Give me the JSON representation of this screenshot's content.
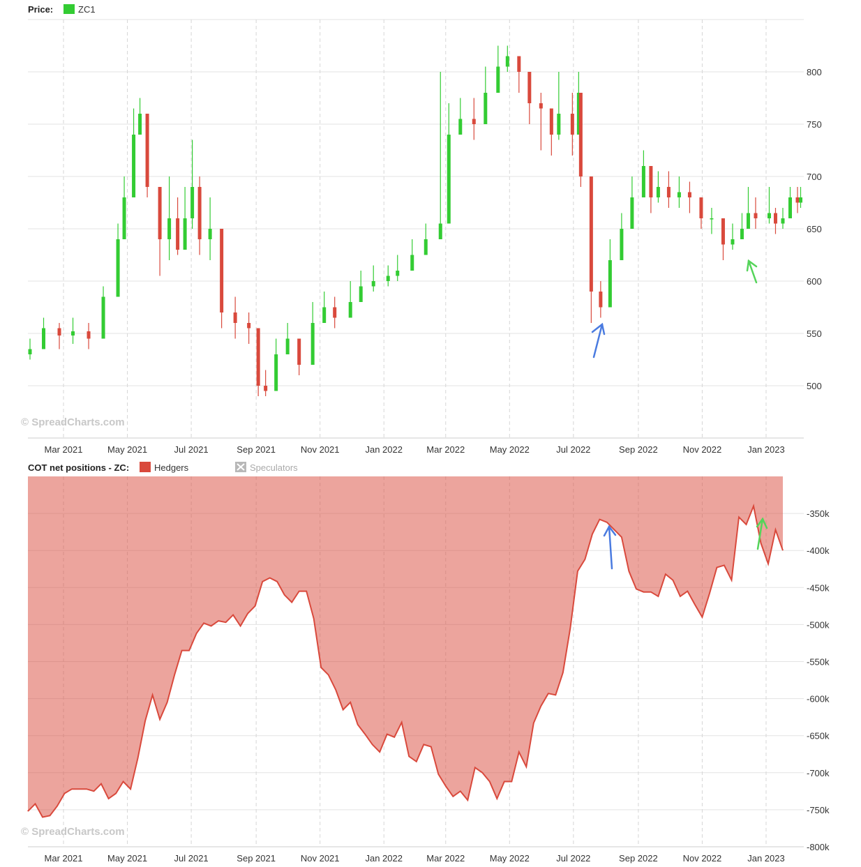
{
  "price_panel": {
    "label": "Price:",
    "legend": [
      {
        "name": "ZC1",
        "color": "#33cc33"
      }
    ],
    "watermark": "© SpreadCharts.com"
  },
  "cot_panel": {
    "label": "COT net positions - ZC:",
    "legend": [
      {
        "name": "Hedgers",
        "color": "#d9493c",
        "active": true
      },
      {
        "name": "Speculators",
        "color": "#aaaaaa",
        "active": false
      }
    ],
    "watermark": "© SpreadCharts.com"
  },
  "chart_data": [
    {
      "type": "candlestick",
      "title": "",
      "series_name": "ZC1",
      "x_ticks": [
        "Mar 2021",
        "May 2021",
        "Jul 2021",
        "Sep 2021",
        "Nov 2021",
        "Jan 2022",
        "Mar 2022",
        "May 2022",
        "Jul 2022",
        "Sep 2022",
        "Nov 2022",
        "Jan 2023"
      ],
      "y_ticks": [
        500,
        550,
        600,
        650,
        700,
        750,
        800
      ],
      "ylim": [
        450,
        850
      ],
      "colors": {
        "up": "#33cc33",
        "down": "#d9493c"
      },
      "grid": true,
      "x": [
        "2021-01-28",
        "2021-02-10",
        "2021-02-25",
        "2021-03-10",
        "2021-03-25",
        "2021-04-08",
        "2021-04-22",
        "2021-04-28",
        "2021-05-07",
        "2021-05-13",
        "2021-05-20",
        "2021-06-01",
        "2021-06-10",
        "2021-06-18",
        "2021-06-25",
        "2021-07-02",
        "2021-07-09",
        "2021-07-19",
        "2021-07-30",
        "2021-08-12",
        "2021-08-25",
        "2021-09-03",
        "2021-09-10",
        "2021-09-20",
        "2021-10-01",
        "2021-10-12",
        "2021-10-25",
        "2021-11-05",
        "2021-11-15",
        "2021-11-30",
        "2021-12-10",
        "2021-12-22",
        "2022-01-05",
        "2022-01-14",
        "2022-01-28",
        "2022-02-10",
        "2022-02-24",
        "2022-03-04",
        "2022-03-15",
        "2022-03-28",
        "2022-04-08",
        "2022-04-20",
        "2022-04-29",
        "2022-05-10",
        "2022-05-20",
        "2022-05-31",
        "2022-06-10",
        "2022-06-17",
        "2022-06-30",
        "2022-07-06",
        "2022-07-08",
        "2022-07-18",
        "2022-07-27",
        "2022-08-05",
        "2022-08-16",
        "2022-08-26",
        "2022-09-06",
        "2022-09-13",
        "2022-09-20",
        "2022-09-30",
        "2022-10-10",
        "2022-10-20",
        "2022-10-31",
        "2022-11-10",
        "2022-11-21",
        "2022-11-30",
        "2022-12-09",
        "2022-12-15",
        "2022-12-22",
        "2023-01-04",
        "2023-01-10",
        "2023-01-17",
        "2023-01-24",
        "2023-01-31",
        "2023-02-03"
      ],
      "close": [
        535,
        555,
        548,
        552,
        545,
        585,
        640,
        680,
        740,
        760,
        690,
        640,
        660,
        630,
        660,
        690,
        640,
        650,
        570,
        560,
        555,
        500,
        495,
        530,
        545,
        520,
        560,
        575,
        565,
        580,
        595,
        600,
        605,
        610,
        625,
        640,
        655,
        740,
        755,
        750,
        780,
        805,
        815,
        800,
        770,
        765,
        740,
        760,
        740,
        780,
        700,
        590,
        575,
        620,
        650,
        680,
        710,
        680,
        690,
        680,
        685,
        680,
        660,
        660,
        635,
        640,
        650,
        665,
        660,
        665,
        655,
        660,
        680,
        675,
        680
      ],
      "high": [
        545,
        565,
        560,
        565,
        560,
        595,
        655,
        700,
        765,
        775,
        760,
        680,
        700,
        680,
        690,
        735,
        700,
        680,
        585,
        585,
        570,
        520,
        515,
        545,
        560,
        545,
        580,
        590,
        585,
        600,
        610,
        615,
        615,
        625,
        640,
        655,
        800,
        770,
        775,
        775,
        805,
        825,
        825,
        815,
        790,
        780,
        760,
        800,
        780,
        800,
        730,
        620,
        600,
        640,
        665,
        700,
        725,
        700,
        705,
        705,
        700,
        695,
        675,
        670,
        650,
        655,
        665,
        690,
        680,
        690,
        670,
        670,
        690,
        690,
        690
      ],
      "low": [
        525,
        540,
        535,
        540,
        535,
        570,
        630,
        660,
        720,
        740,
        680,
        605,
        620,
        625,
        640,
        650,
        625,
        620,
        555,
        545,
        540,
        490,
        490,
        515,
        530,
        510,
        545,
        560,
        555,
        570,
        585,
        590,
        595,
        600,
        615,
        625,
        645,
        725,
        740,
        735,
        765,
        790,
        800,
        780,
        750,
        725,
        720,
        735,
        720,
        740,
        690,
        560,
        565,
        600,
        640,
        665,
        690,
        665,
        675,
        670,
        670,
        665,
        650,
        645,
        620,
        630,
        640,
        655,
        650,
        655,
        645,
        650,
        665,
        665,
        670
      ]
    },
    {
      "type": "area",
      "title": "",
      "series": [
        {
          "name": "Hedgers",
          "color": "#d9493c"
        }
      ],
      "x_ticks": [
        "Mar 2021",
        "May 2021",
        "Jul 2021",
        "Sep 2021",
        "Nov 2021",
        "Jan 2022",
        "Mar 2022",
        "May 2022",
        "Jul 2022",
        "Sep 2022",
        "Nov 2022",
        "Jan 2023"
      ],
      "y_ticks": [
        "-350k",
        "-400k",
        "-450k",
        "-500k",
        "-550k",
        "-600k",
        "-650k",
        "-700k",
        "-750k",
        "-800k"
      ],
      "ylim": [
        -800000,
        -300000
      ],
      "grid": true,
      "x": [
        "2021-01-26",
        "2021-02-02",
        "2021-02-09",
        "2021-02-16",
        "2021-02-23",
        "2021-03-02",
        "2021-03-09",
        "2021-03-16",
        "2021-03-23",
        "2021-03-30",
        "2021-04-06",
        "2021-04-13",
        "2021-04-20",
        "2021-04-27",
        "2021-05-04",
        "2021-05-11",
        "2021-05-18",
        "2021-05-25",
        "2021-06-01",
        "2021-06-08",
        "2021-06-15",
        "2021-06-22",
        "2021-06-29",
        "2021-07-06",
        "2021-07-13",
        "2021-07-20",
        "2021-07-27",
        "2021-08-03",
        "2021-08-10",
        "2021-08-17",
        "2021-08-24",
        "2021-08-31",
        "2021-09-07",
        "2021-09-14",
        "2021-09-21",
        "2021-09-28",
        "2021-10-05",
        "2021-10-12",
        "2021-10-19",
        "2021-10-26",
        "2021-11-02",
        "2021-11-09",
        "2021-11-16",
        "2021-11-23",
        "2021-11-30",
        "2021-12-07",
        "2021-12-14",
        "2021-12-21",
        "2021-12-28",
        "2022-01-04",
        "2022-01-11",
        "2022-01-18",
        "2022-01-25",
        "2022-02-01",
        "2022-02-08",
        "2022-02-15",
        "2022-02-22",
        "2022-03-01",
        "2022-03-08",
        "2022-03-15",
        "2022-03-22",
        "2022-03-29",
        "2022-04-05",
        "2022-04-12",
        "2022-04-19",
        "2022-04-26",
        "2022-05-03",
        "2022-05-10",
        "2022-05-17",
        "2022-05-24",
        "2022-05-31",
        "2022-06-07",
        "2022-06-14",
        "2022-06-21",
        "2022-06-28",
        "2022-07-05",
        "2022-07-12",
        "2022-07-19",
        "2022-07-26",
        "2022-08-02",
        "2022-08-09",
        "2022-08-16",
        "2022-08-23",
        "2022-08-30",
        "2022-09-06",
        "2022-09-13",
        "2022-09-20",
        "2022-09-27",
        "2022-10-04",
        "2022-10-11",
        "2022-10-18",
        "2022-10-25",
        "2022-11-01",
        "2022-11-08",
        "2022-11-15",
        "2022-11-22",
        "2022-11-29",
        "2022-12-06",
        "2022-12-13",
        "2022-12-20",
        "2022-12-27",
        "2023-01-03",
        "2023-01-10",
        "2023-01-17"
      ],
      "values": [
        -752000,
        -742000,
        -760000,
        -758000,
        -745000,
        -728000,
        -722000,
        -722000,
        -722000,
        -725000,
        -715000,
        -735000,
        -728000,
        -712000,
        -722000,
        -680000,
        -630000,
        -595000,
        -628000,
        -605000,
        -568000,
        -535000,
        -535000,
        -512000,
        -498000,
        -502000,
        -495000,
        -497000,
        -487000,
        -502000,
        -485000,
        -475000,
        -442000,
        -437000,
        -442000,
        -460000,
        -470000,
        -455000,
        -455000,
        -492000,
        -558000,
        -568000,
        -588000,
        -615000,
        -605000,
        -635000,
        -648000,
        -662000,
        -672000,
        -648000,
        -652000,
        -632000,
        -678000,
        -685000,
        -662000,
        -665000,
        -702000,
        -718000,
        -732000,
        -725000,
        -737000,
        -693000,
        -700000,
        -712000,
        -735000,
        -712000,
        -712000,
        -672000,
        -692000,
        -633000,
        -610000,
        -593000,
        -595000,
        -565000,
        -505000,
        -428000,
        -412000,
        -378000,
        -358000,
        -362000,
        -372000,
        -382000,
        -428000,
        -452000,
        -456000,
        -456000,
        -462000,
        -432000,
        -440000,
        -462000,
        -455000,
        -473000,
        -490000,
        -458000,
        -423000,
        -420000,
        -440000,
        -355000,
        -365000,
        -340000,
        -390000,
        -418000,
        -372000,
        -400000
      ]
    }
  ]
}
